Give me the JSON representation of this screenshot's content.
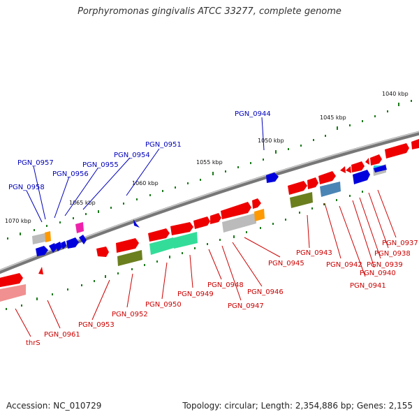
{
  "title": "Porphyromonas gingivalis ATCC 33277, complete genome",
  "footer": {
    "accession": "Accession: NC_010729",
    "topology": "Topology: circular; Length: 2,354,886 bp; Genes: 2,155"
  },
  "scale_labels": [
    "1040 kbp",
    "1045 kbp",
    "1050 kbp",
    "1055 kbp",
    "1060 kbp",
    "1065 kbp",
    "1070 kbp"
  ],
  "gene_labels_upper": [
    "PGN_0944",
    "PGN_0951",
    "PGN_0954",
    "PGN_0955",
    "PGN_0956",
    "PGN_0957",
    "PGN_0958"
  ],
  "gene_labels_lower": [
    "PGN_0937",
    "PGN_0938",
    "PGN_0939",
    "PGN_0940",
    "PGN_0941",
    "PGN_0942",
    "PGN_0943",
    "PGN_0945",
    "PGN_0946",
    "PGN_0947",
    "PGN_0948",
    "PGN_0949",
    "PGN_0950",
    "PGN_0952",
    "PGN_0953",
    "PGN_0961",
    "thrS"
  ],
  "colors": {
    "forward_gene": "#ee0000",
    "reverse_gene": "#0000dd",
    "backbone": "#888888",
    "tick": "#1a7a1a"
  }
}
